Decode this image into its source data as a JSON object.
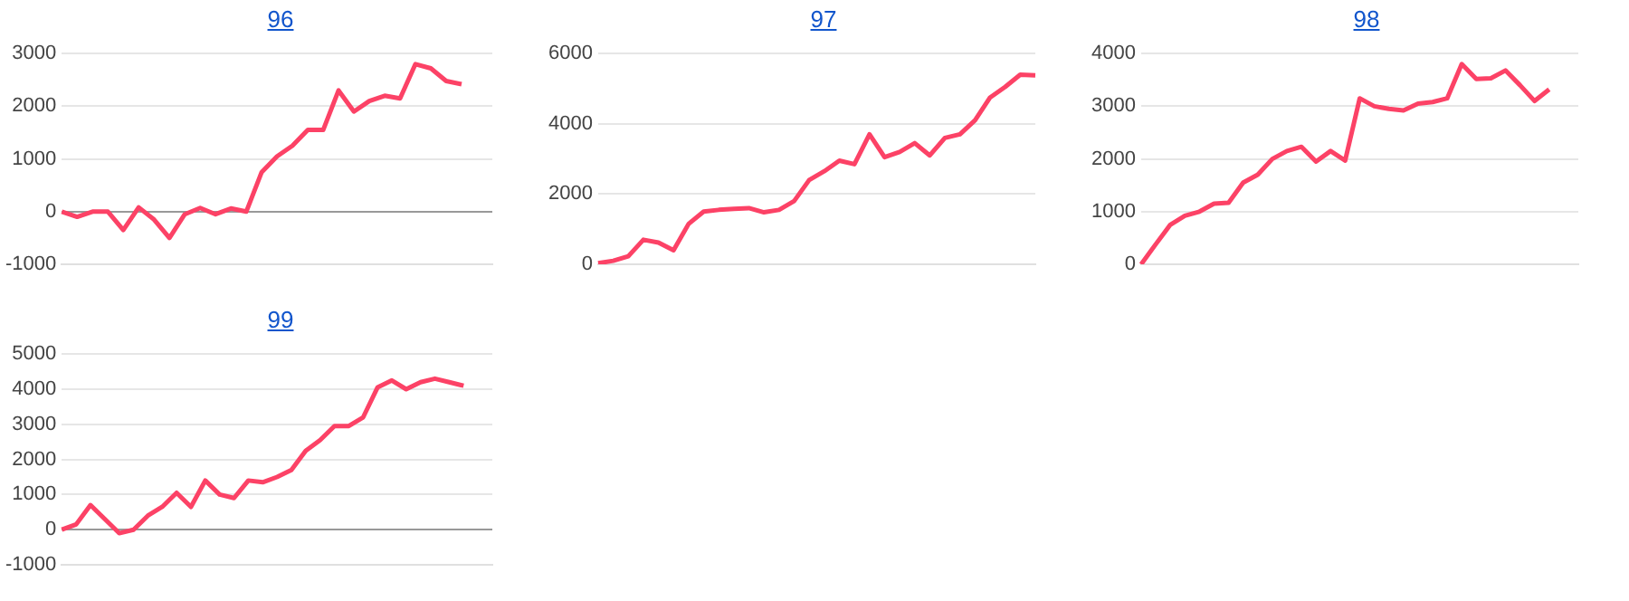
{
  "chart_data": [
    {
      "type": "line",
      "title": "96",
      "categories": [
        null,
        null,
        null,
        null,
        null,
        null,
        null,
        null,
        null,
        null,
        null,
        null,
        null,
        null,
        null,
        null,
        null,
        null,
        null,
        null,
        null,
        null,
        null,
        null,
        null,
        null,
        null,
        null,
        null
      ],
      "series": [
        {
          "color": "#fc4266",
          "values": [
            0,
            -100,
            0,
            0,
            -350,
            80,
            -150,
            -500,
            -50,
            70,
            -50,
            60,
            0,
            750,
            1050,
            1250,
            1550,
            1550,
            2300,
            1900,
            2100,
            2200,
            2150,
            2800,
            2720,
            2480,
            2420,
            null,
            null
          ]
        }
      ],
      "ylim": [
        -1000,
        3000
      ],
      "yticks": [
        -1000,
        0,
        1000,
        2000,
        3000
      ],
      "grid": "y",
      "legend": false,
      "marker": "none",
      "tick_labels": "y"
    },
    {
      "type": "line",
      "title": "97",
      "categories": [
        null,
        null,
        null,
        null,
        null,
        null,
        null,
        null,
        null,
        null,
        null,
        null,
        null,
        null,
        null,
        null,
        null,
        null,
        null,
        null,
        null,
        null,
        null,
        null,
        null,
        null,
        null,
        null,
        null,
        null
      ],
      "series": [
        {
          "color": "#fc4266",
          "values": [
            30,
            100,
            230,
            700,
            620,
            400,
            1150,
            1500,
            1550,
            1580,
            1600,
            1480,
            1550,
            1800,
            2400,
            2650,
            2950,
            2850,
            3700,
            3050,
            3200,
            3450,
            3100,
            3600,
            3700,
            4100,
            4750,
            5050,
            5400,
            5380
          ]
        }
      ],
      "ylim": [
        0,
        6000
      ],
      "yticks": [
        0,
        2000,
        4000,
        6000
      ],
      "grid": "y",
      "legend": false,
      "marker": "none",
      "tick_labels": "y"
    },
    {
      "type": "line",
      "title": "98",
      "categories": [
        null,
        null,
        null,
        null,
        null,
        null,
        null,
        null,
        null,
        null,
        null,
        null,
        null,
        null,
        null,
        null,
        null,
        null,
        null,
        null,
        null,
        null,
        null,
        null,
        null,
        null,
        null,
        null,
        null,
        null,
        null
      ],
      "series": [
        {
          "color": "#fc4266",
          "values": [
            0,
            380,
            750,
            920,
            1000,
            1150,
            1170,
            1550,
            1700,
            2000,
            2150,
            2230,
            1950,
            2150,
            1970,
            3150,
            3000,
            2950,
            2920,
            3050,
            3080,
            3150,
            3800,
            3520,
            3530,
            3680,
            3400,
            3100,
            3320,
            null,
            null
          ]
        }
      ],
      "ylim": [
        0,
        4000
      ],
      "yticks": [
        0,
        1000,
        2000,
        3000,
        4000
      ],
      "grid": "y",
      "legend": false,
      "marker": "none",
      "tick_labels": "y"
    },
    {
      "type": "line",
      "title": "99",
      "categories": [
        null,
        null,
        null,
        null,
        null,
        null,
        null,
        null,
        null,
        null,
        null,
        null,
        null,
        null,
        null,
        null,
        null,
        null,
        null,
        null,
        null,
        null,
        null,
        null,
        null,
        null,
        null,
        null,
        null,
        null,
        null
      ],
      "series": [
        {
          "color": "#fc4266",
          "values": [
            0,
            150,
            700,
            300,
            -100,
            0,
            400,
            650,
            1050,
            650,
            1400,
            1000,
            900,
            1400,
            1350,
            1500,
            1700,
            2250,
            2550,
            2950,
            2950,
            3200,
            4050,
            4250,
            4000,
            4200,
            4300,
            4200,
            4100,
            null,
            null
          ]
        }
      ],
      "ylim": [
        -1000,
        5000
      ],
      "yticks": [
        -1000,
        0,
        1000,
        2000,
        3000,
        4000,
        5000
      ],
      "grid": "y",
      "legend": false,
      "marker": "none",
      "tick_labels": "y"
    }
  ]
}
